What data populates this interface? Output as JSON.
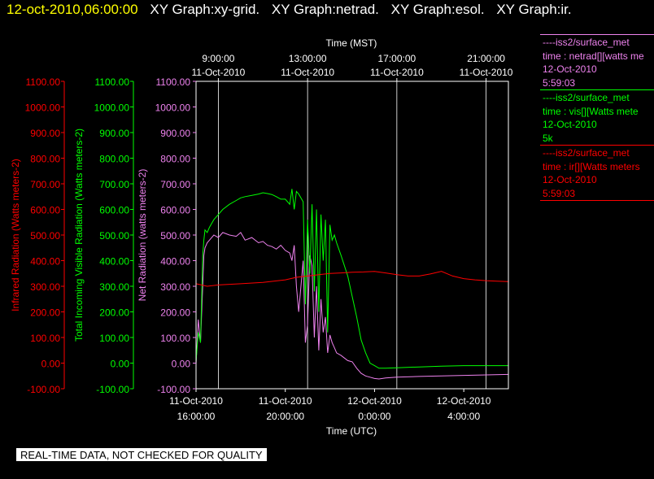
{
  "header": {
    "timestamp": "12-oct-2010,06:00:00",
    "graphs": [
      "XY Graph:xy-grid.",
      "XY Graph:netrad.",
      "XY Graph:esol.",
      "XY Graph:ir."
    ]
  },
  "legend": [
    {
      "line1": "----iss2/surface_met",
      "line2": "time : netrad[][watts me",
      "line3": "12-Oct-2010",
      "line4": "5:59:03",
      "color": "#ee82ee"
    },
    {
      "line1": "----iss2/surface_met",
      "line2": "time : vis[][Watts mete",
      "line3": "12-Oct-2010",
      "line4": "5k",
      "color": "#00ff00"
    },
    {
      "line1": "----iss2/surface_met",
      "line2": "time : ir[][Watts meters",
      "line3": "12-Oct-2010",
      "line4": "5:59:03",
      "color": "#ff0000"
    }
  ],
  "footer_note": "REAL-TIME DATA, NOT CHECKED FOR QUALITY",
  "chart_data": {
    "type": "line",
    "x_unit": "hours since 11-Oct-2010 16:00 UTC",
    "xlim": [
      0,
      14
    ],
    "ylim": [
      -100,
      1100
    ],
    "grid": true,
    "x_top_label": "Time (MST)",
    "x_top_ticks": [
      {
        "x": 1,
        "line1": "9:00:00",
        "line2": "11-Oct-2010"
      },
      {
        "x": 5,
        "line1": "13:00:00",
        "line2": "11-Oct-2010"
      },
      {
        "x": 9,
        "line1": "17:00:00",
        "line2": "11-Oct-2010"
      },
      {
        "x": 13,
        "line1": "21:00:00",
        "line2": "11-Oct-2010"
      }
    ],
    "x_bottom_label": "Time (UTC)",
    "x_bottom_ticks": [
      {
        "x": 0,
        "line1": "11-Oct-2010",
        "line2": "16:00:00"
      },
      {
        "x": 4,
        "line1": "11-Oct-2010",
        "line2": "20:00:00"
      },
      {
        "x": 8,
        "line1": "12-Oct-2010",
        "line2": "0:00:00"
      },
      {
        "x": 12,
        "line1": "12-Oct-2010",
        "line2": "4:00:00"
      }
    ],
    "y_ticks": [
      "-100.00",
      "0.00",
      "100.00",
      "200.00",
      "300.00",
      "400.00",
      "500.00",
      "600.00",
      "700.00",
      "800.00",
      "900.00",
      "1000.00",
      "1100.00"
    ],
    "y_ticks_net": [
      "-100.00",
      "0.00",
      "100.00",
      "200.00",
      "300.00",
      "400.00",
      "500.00",
      "600.00",
      "700.00",
      "800.00",
      "900.00",
      "1000.00",
      "1100.00"
    ],
    "axes": [
      {
        "label": "Infrared Radiation (Watts meters-2)",
        "color": "#ff0000"
      },
      {
        "label": "Total Incoming Visible Radiation (Watts meters-2)",
        "color": "#00ff00"
      },
      {
        "label": "Net Radiation (watts meters-2)",
        "color": "#ee82ee"
      }
    ],
    "series": [
      {
        "name": "netrad",
        "color": "#ee82ee",
        "x": [
          0,
          0.1,
          0.2,
          0.3,
          0.35,
          0.4,
          0.5,
          0.6,
          0.8,
          1.0,
          1.2,
          1.5,
          1.8,
          2.0,
          2.2,
          2.5,
          2.8,
          3.0,
          3.2,
          3.4,
          3.6,
          3.8,
          4.0,
          4.2,
          4.3,
          4.4,
          4.5,
          4.6,
          4.8,
          4.9,
          5.0,
          5.1,
          5.2,
          5.3,
          5.4,
          5.5,
          5.6,
          5.7,
          5.8,
          5.9,
          6.0,
          6.1,
          6.2,
          6.3,
          6.5,
          6.8,
          7.0,
          7.2,
          7.4,
          7.6,
          7.8,
          8.0,
          8.2,
          8.5,
          9.0,
          10.0,
          11.0,
          12.0,
          13.0,
          14.0
        ],
        "y": [
          -5,
          170,
          80,
          300,
          420,
          450,
          470,
          480,
          500,
          490,
          510,
          500,
          495,
          510,
          480,
          490,
          470,
          475,
          460,
          455,
          445,
          460,
          440,
          430,
          400,
          460,
          300,
          200,
          400,
          80,
          150,
          420,
          380,
          100,
          300,
          50,
          250,
          120,
          180,
          40,
          110,
          80,
          60,
          40,
          30,
          10,
          5,
          -20,
          -40,
          -50,
          -55,
          -60,
          -62,
          -58,
          -55,
          -52,
          -50,
          -48,
          -46,
          -44
        ]
      },
      {
        "name": "vis",
        "color": "#00ff00",
        "x": [
          0,
          0.1,
          0.2,
          0.3,
          0.35,
          0.4,
          0.5,
          0.6,
          0.8,
          1.0,
          1.2,
          1.5,
          1.8,
          2.0,
          2.2,
          2.5,
          2.8,
          3.0,
          3.2,
          3.4,
          3.6,
          3.8,
          4.0,
          4.2,
          4.3,
          4.4,
          4.5,
          4.6,
          4.8,
          4.9,
          5.0,
          5.1,
          5.2,
          5.3,
          5.4,
          5.5,
          5.6,
          5.7,
          5.8,
          5.9,
          6.0,
          6.1,
          6.2,
          6.3,
          6.5,
          6.8,
          7.0,
          7.2,
          7.4,
          7.6,
          7.8,
          8.0,
          8.2,
          8.5,
          9.0,
          10.0,
          11.0,
          12.0,
          13.0,
          14.0
        ],
        "y": [
          5,
          120,
          80,
          420,
          480,
          520,
          510,
          530,
          560,
          580,
          600,
          620,
          635,
          645,
          650,
          655,
          660,
          665,
          662,
          658,
          650,
          640,
          640,
          620,
          680,
          600,
          670,
          660,
          630,
          230,
          560,
          350,
          620,
          280,
          600,
          200,
          580,
          400,
          560,
          120,
          540,
          480,
          500,
          470,
          420,
          340,
          260,
          180,
          90,
          40,
          0,
          -10,
          -20,
          -20,
          -18,
          -15,
          -12,
          -10,
          -10,
          -10
        ]
      },
      {
        "name": "ir",
        "color": "#ff0000",
        "x": [
          0,
          0.5,
          1.0,
          2.0,
          3.0,
          4.0,
          4.5,
          5.0,
          5.5,
          6.0,
          6.5,
          7.0,
          7.5,
          8.0,
          8.5,
          9.0,
          9.5,
          10.0,
          10.5,
          11.0,
          11.5,
          12.0,
          12.5,
          13.0,
          13.5,
          14.0
        ],
        "y": [
          310,
          300,
          305,
          310,
          315,
          325,
          335,
          340,
          345,
          350,
          352,
          355,
          356,
          358,
          352,
          345,
          340,
          340,
          348,
          358,
          340,
          330,
          325,
          322,
          320,
          318
        ]
      }
    ]
  }
}
